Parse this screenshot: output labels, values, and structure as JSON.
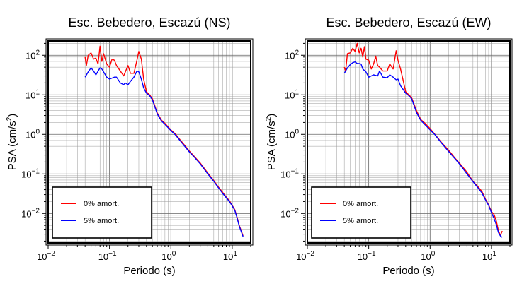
{
  "chart_data": [
    {
      "type": "line",
      "title": "Esc. Bebedero, Escazú (NS)",
      "xlabel": "Periodo (s)",
      "ylabel_main": "PSA (cm/s",
      "ylabel_sup": "2",
      "ylabel_end": ")",
      "x_scale": "log",
      "y_scale": "log",
      "xlim": [
        0.01,
        20
      ],
      "ylim": [
        0.0018,
        230
      ],
      "grid": true,
      "legend_position": "bottom-left",
      "xticks": [
        {
          "base": "10",
          "exp": "−2",
          "value": 0.01
        },
        {
          "base": "10",
          "exp": "−1",
          "value": 0.1
        },
        {
          "base": "10",
          "exp": "0",
          "value": 1
        },
        {
          "base": "10",
          "exp": "1",
          "value": 10
        }
      ],
      "yticks": [
        {
          "base": "10",
          "exp": "−2",
          "value": 0.01
        },
        {
          "base": "10",
          "exp": "−1",
          "value": 0.1
        },
        {
          "base": "10",
          "exp": "0",
          "value": 1
        },
        {
          "base": "10",
          "exp": "1",
          "value": 10
        },
        {
          "base": "10",
          "exp": "2",
          "value": 100
        }
      ],
      "series": [
        {
          "name": "0% amort.",
          "color": "#ff0000",
          "x": [
            0.04,
            0.042,
            0.045,
            0.05,
            0.055,
            0.06,
            0.065,
            0.07,
            0.075,
            0.08,
            0.09,
            0.1,
            0.11,
            0.12,
            0.13,
            0.15,
            0.17,
            0.2,
            0.22,
            0.25,
            0.28,
            0.3,
            0.33,
            0.36,
            0.4,
            0.45,
            0.5,
            0.6,
            0.7,
            0.8,
            1,
            1.2,
            1.5,
            2,
            2.5,
            3,
            4,
            5,
            6,
            7,
            8,
            9,
            10,
            11,
            12,
            13,
            14,
            15
          ],
          "y": [
            90,
            55,
            100,
            115,
            80,
            85,
            60,
            170,
            70,
            110,
            60,
            50,
            80,
            75,
            55,
            40,
            30,
            55,
            35,
            35,
            75,
            125,
            80,
            25,
            12,
            10,
            8,
            3.5,
            2.3,
            1.9,
            1.3,
            1.0,
            0.65,
            0.38,
            0.26,
            0.19,
            0.105,
            0.068,
            0.046,
            0.034,
            0.026,
            0.021,
            0.016,
            0.0125,
            0.008,
            0.005,
            0.0037,
            0.0027
          ]
        },
        {
          "name": "5% amort.",
          "color": "#0000ff",
          "x": [
            0.04,
            0.045,
            0.05,
            0.055,
            0.06,
            0.07,
            0.075,
            0.08,
            0.09,
            0.1,
            0.12,
            0.13,
            0.15,
            0.17,
            0.18,
            0.2,
            0.22,
            0.25,
            0.28,
            0.3,
            0.33,
            0.36,
            0.4,
            0.45,
            0.5,
            0.6,
            0.7,
            0.8,
            1,
            1.2,
            1.5,
            2,
            2.5,
            3,
            4,
            5,
            6,
            7,
            8,
            9,
            10,
            11,
            12,
            13,
            14,
            15
          ],
          "y": [
            28,
            38,
            48,
            40,
            32,
            48,
            45,
            38,
            28,
            25,
            28,
            28,
            20,
            18,
            20,
            18,
            22,
            28,
            40,
            38,
            25,
            15,
            11,
            9.5,
            7.5,
            3.3,
            2.2,
            1.8,
            1.25,
            0.95,
            0.62,
            0.36,
            0.25,
            0.18,
            0.1,
            0.065,
            0.044,
            0.032,
            0.025,
            0.02,
            0.0155,
            0.012,
            0.0077,
            0.0048,
            0.0035,
            0.0026
          ]
        }
      ]
    },
    {
      "type": "line",
      "title": "Esc. Bebedero, Escazú (EW)",
      "xlabel": "Periodo (s)",
      "ylabel_main": "PSA (cm/s",
      "ylabel_sup": "2",
      "ylabel_end": ")",
      "x_scale": "log",
      "y_scale": "log",
      "xlim": [
        0.01,
        20
      ],
      "ylim": [
        0.0018,
        230
      ],
      "grid": true,
      "legend_position": "bottom-left",
      "xticks": [
        {
          "base": "10",
          "exp": "−2",
          "value": 0.01
        },
        {
          "base": "10",
          "exp": "−1",
          "value": 0.1
        },
        {
          "base": "10",
          "exp": "0",
          "value": 1
        },
        {
          "base": "10",
          "exp": "1",
          "value": 10
        }
      ],
      "yticks": [
        {
          "base": "10",
          "exp": "−2",
          "value": 0.01
        },
        {
          "base": "10",
          "exp": "−1",
          "value": 0.1
        },
        {
          "base": "10",
          "exp": "0",
          "value": 1
        },
        {
          "base": "10",
          "exp": "1",
          "value": 10
        },
        {
          "base": "10",
          "exp": "2",
          "value": 100
        }
      ],
      "series": [
        {
          "name": "0% amort.",
          "color": "#ff0000",
          "x": [
            0.04,
            0.042,
            0.045,
            0.05,
            0.055,
            0.06,
            0.065,
            0.07,
            0.075,
            0.08,
            0.085,
            0.09,
            0.1,
            0.11,
            0.12,
            0.13,
            0.14,
            0.15,
            0.17,
            0.2,
            0.22,
            0.25,
            0.28,
            0.3,
            0.33,
            0.36,
            0.4,
            0.45,
            0.5,
            0.6,
            0.7,
            0.8,
            1,
            1.2,
            1.5,
            2,
            2.5,
            3,
            4,
            5,
            6,
            7,
            8,
            9,
            10,
            11,
            12,
            13,
            14,
            15
          ],
          "y": [
            50,
            40,
            110,
            115,
            150,
            125,
            200,
            115,
            150,
            90,
            165,
            80,
            75,
            45,
            60,
            95,
            55,
            50,
            40,
            40,
            60,
            45,
            130,
            75,
            45,
            25,
            12,
            10,
            8.5,
            4,
            2.4,
            2.0,
            1.4,
            1.0,
            0.65,
            0.4,
            0.26,
            0.19,
            0.11,
            0.065,
            0.048,
            0.036,
            0.023,
            0.0165,
            0.0112,
            0.0095,
            0.0065,
            0.0037,
            0.0028,
            0.0036
          ]
        },
        {
          "name": "5% amort.",
          "color": "#0000ff",
          "x": [
            0.04,
            0.045,
            0.05,
            0.055,
            0.06,
            0.065,
            0.07,
            0.075,
            0.08,
            0.09,
            0.1,
            0.12,
            0.14,
            0.15,
            0.17,
            0.2,
            0.22,
            0.25,
            0.28,
            0.3,
            0.33,
            0.36,
            0.4,
            0.45,
            0.5,
            0.6,
            0.7,
            0.8,
            1,
            1.2,
            1.5,
            2,
            2.5,
            3,
            4,
            5,
            6,
            7,
            8,
            9,
            10,
            11,
            12,
            13,
            14,
            15
          ],
          "y": [
            35,
            48,
            58,
            65,
            68,
            62,
            62,
            60,
            45,
            38,
            28,
            32,
            30,
            40,
            28,
            27,
            32,
            28,
            24,
            25,
            17,
            14,
            11,
            9.5,
            8,
            3.6,
            2.3,
            1.85,
            1.3,
            0.98,
            0.63,
            0.37,
            0.25,
            0.18,
            0.1,
            0.064,
            0.045,
            0.033,
            0.022,
            0.016,
            0.0105,
            0.0076,
            0.0052,
            0.0033,
            0.0027,
            0.0025
          ]
        }
      ]
    }
  ]
}
